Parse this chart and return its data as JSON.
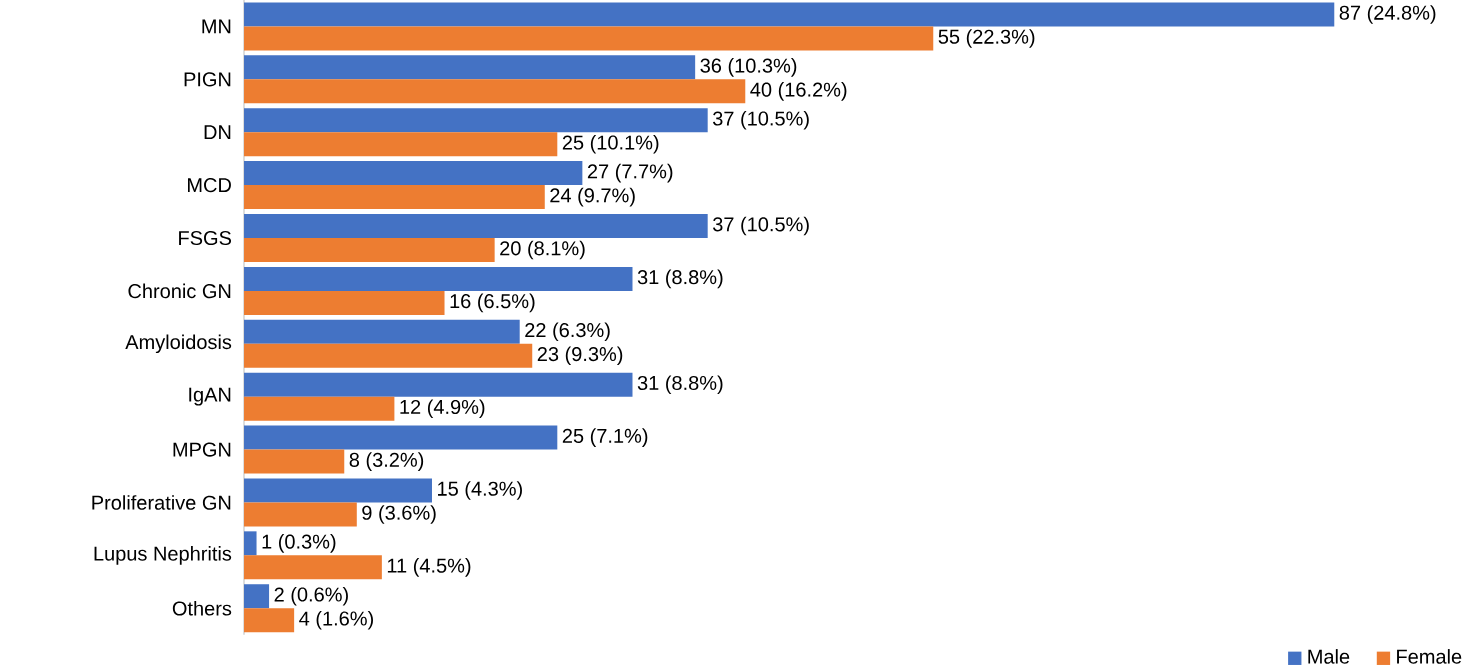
{
  "chart_data": {
    "type": "bar",
    "orientation": "horizontal",
    "legend": "bottom right",
    "categories": [
      "MN",
      "PIGN",
      "DN",
      "MCD",
      "FSGS",
      "Chronic GN",
      "Amyloidosis",
      "IgAN",
      "MPGN",
      "Proliferative GN",
      "Lupus Nephritis",
      "Others"
    ],
    "series": [
      {
        "name": "Male",
        "color": "#4472c4",
        "values": [
          87,
          36,
          37,
          27,
          37,
          31,
          22,
          31,
          25,
          15,
          1,
          2
        ],
        "value_labels": [
          "87 (24.8%)",
          "36 (10.3%)",
          "37 (10.5%)",
          "27 (7.7%)",
          "37 (10.5%)",
          "31 (8.8%)",
          "22 (6.3%)",
          "31 (8.8%)",
          "25 (7.1%)",
          "15 (4.3%)",
          "1 (0.3%)",
          "2 (0.6%)"
        ]
      },
      {
        "name": "Female",
        "color": "#ed7d31",
        "values": [
          55,
          40,
          25,
          24,
          20,
          16,
          23,
          12,
          8,
          9,
          11,
          4
        ],
        "value_labels": [
          "55 (22.3%)",
          "40 (16.2%)",
          "25 (10.1%)",
          "24 (9.7%)",
          "20 (8.1%)",
          "16 (6.5%)",
          "23 (9.3%)",
          "12 (4.9%)",
          "8 (3.2%)",
          "9 (3.6%)",
          "11 (4.5%)",
          "4 (1.6%)"
        ]
      }
    ]
  }
}
